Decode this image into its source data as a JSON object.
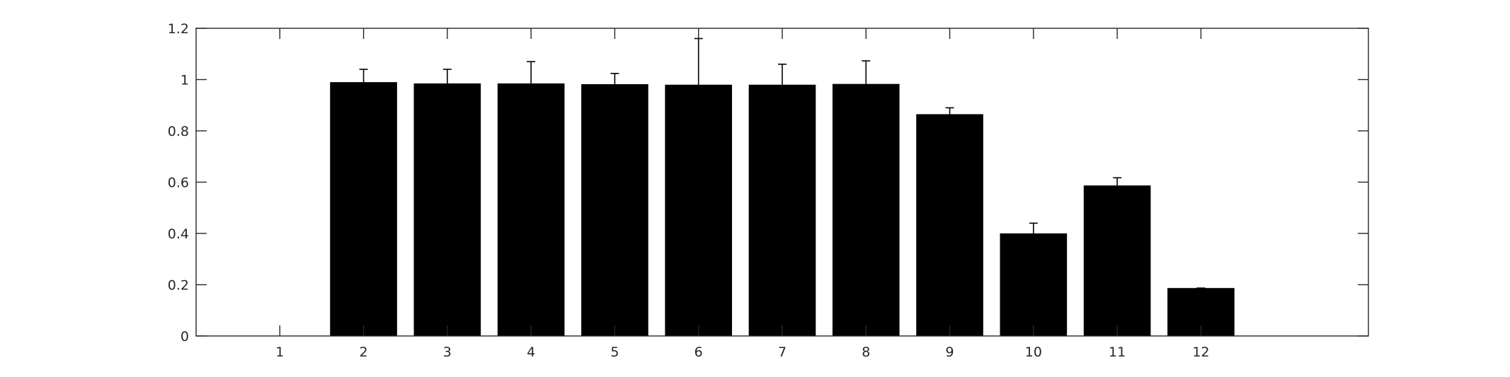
{
  "chart_data": {
    "type": "bar",
    "categories": [
      "1",
      "2",
      "3",
      "4",
      "5",
      "6",
      "7",
      "8",
      "9",
      "10",
      "11",
      "12"
    ],
    "values": [
      0,
      0.99,
      0.985,
      0.985,
      0.982,
      0.98,
      0.98,
      0.983,
      0.865,
      0.4,
      0.587,
      0.187
    ],
    "error_upper": [
      0,
      0.05,
      0.055,
      0.085,
      0.042,
      0.18,
      0.08,
      0.09,
      0.025,
      0.04,
      0.03,
      0.0
    ],
    "title": "",
    "xlabel": "",
    "ylabel": "",
    "ylim": [
      0,
      1.2
    ],
    "xlim": [
      0,
      14
    ],
    "yticks": [
      "0",
      "0.2",
      "0.4",
      "0.6",
      "0.8",
      "1",
      "1.2"
    ],
    "ytick_values": [
      0,
      0.2,
      0.4,
      0.6,
      0.8,
      1.0,
      1.2
    ],
    "grid": false,
    "bar_color": "#000000",
    "axis_color": "#262626"
  }
}
